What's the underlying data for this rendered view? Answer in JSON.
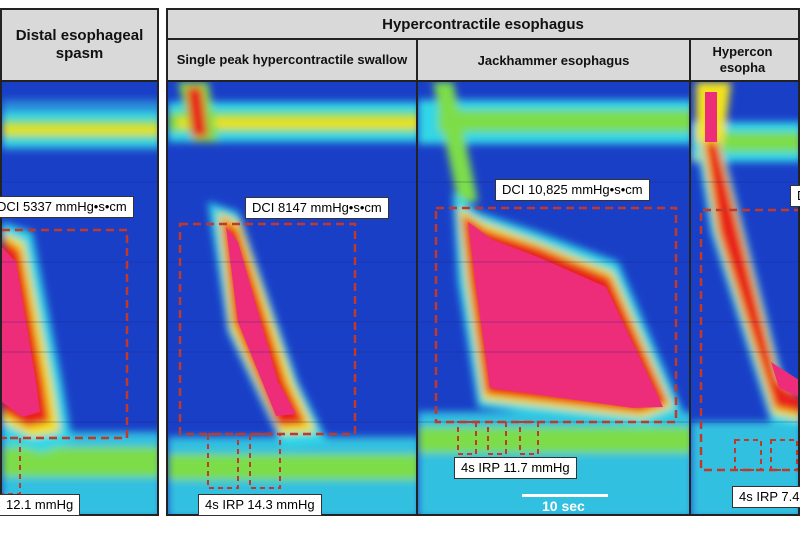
{
  "headers": {
    "distal": "Distal esophageal spasm",
    "group": "Hypercontractile esophagus",
    "single_peak": "Single peak hypercontractile swallow",
    "jackhammer": "Jackhammer esophagus",
    "hypercont_partial": "Hypercon esopha"
  },
  "labels": {
    "dci_p1": "DCI 5337 mmHg•s•cm",
    "irp_p1": "12.1 mmHg",
    "dci_p2": "DCI 8147 mmHg•s•cm",
    "irp_p2": "4s IRP 14.3 mmHg",
    "dci_p3": "DCI 10,825 mmHg•s•cm",
    "irp_p3": "4s IRP 11.7 mmHg",
    "dci_p4": "D",
    "irp_p4": "4s IRP 7.4"
  },
  "scale": {
    "label": "10 sec"
  },
  "colors": {
    "bg": "#1a3fc7",
    "cyan": "#33d6e6",
    "green": "#7ddd4a",
    "yellow": "#f2e21c",
    "red": "#e8221c",
    "magenta": "#ee2d7a",
    "dashed": "#c0392b"
  }
}
